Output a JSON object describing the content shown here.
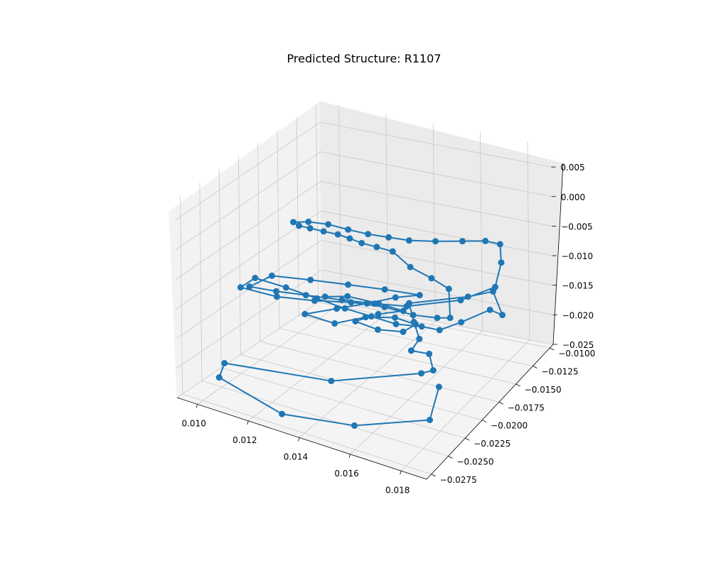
{
  "chart_data": {
    "type": "line",
    "title": "Predicted Structure: R1107",
    "xlabel": "",
    "ylabel": "",
    "zlabel": "",
    "markers": true,
    "color": "#1f77b4",
    "grid": true,
    "x_ticks": [
      "0.010",
      "0.012",
      "0.014",
      "0.016",
      "0.018"
    ],
    "y_ticks": [
      "−0.0100",
      "−0.0125",
      "−0.0150",
      "−0.0175",
      "−0.0200",
      "−0.0225",
      "−0.0250",
      "−0.0275"
    ],
    "z_ticks": [
      "−0.025",
      "−0.020",
      "−0.015",
      "−0.010",
      "−0.005",
      "0.000",
      "0.005"
    ],
    "points": [
      [
        0.0168,
        -0.0184,
        -0.0237
      ],
      [
        0.0171,
        -0.0208,
        -0.0262
      ],
      [
        0.0155,
        -0.0258,
        -0.0235
      ],
      [
        0.0133,
        -0.0281,
        -0.0221
      ],
      [
        0.0109,
        -0.0283,
        -0.0191
      ],
      [
        0.0106,
        -0.0266,
        -0.0187
      ],
      [
        0.0141,
        -0.0241,
        -0.0196
      ],
      [
        0.0164,
        -0.0195,
        -0.0206
      ],
      [
        0.0166,
        -0.0185,
        -0.021
      ],
      [
        0.0165,
        -0.0187,
        -0.0181
      ],
      [
        0.016,
        -0.0195,
        -0.0172
      ],
      [
        0.0159,
        -0.018,
        -0.017
      ],
      [
        0.0153,
        -0.0167,
        -0.0162
      ],
      [
        0.0149,
        -0.016,
        -0.0142
      ],
      [
        0.0161,
        -0.0118,
        -0.0166
      ],
      [
        0.0168,
        -0.0106,
        -0.0165
      ],
      [
        0.0173,
        -0.011,
        -0.0196
      ],
      [
        0.0169,
        -0.0114,
        -0.0186
      ],
      [
        0.0164,
        -0.0138,
        -0.0184
      ],
      [
        0.016,
        -0.0155,
        -0.0182
      ],
      [
        0.0155,
        -0.0163,
        -0.0172
      ],
      [
        0.0148,
        -0.0175,
        -0.0162
      ],
      [
        0.014,
        -0.0182,
        -0.015
      ],
      [
        0.0131,
        -0.0188,
        -0.014
      ],
      [
        0.0122,
        -0.0196,
        -0.0125
      ],
      [
        0.0112,
        -0.0204,
        -0.011
      ],
      [
        0.0102,
        -0.0212,
        -0.0098
      ],
      [
        0.0097,
        -0.0215,
        -0.0117
      ],
      [
        0.0107,
        -0.02,
        -0.0135
      ],
      [
        0.0118,
        -0.0186,
        -0.0143
      ],
      [
        0.0129,
        -0.0173,
        -0.0147
      ],
      [
        0.014,
        -0.0164,
        -0.0153
      ],
      [
        0.015,
        -0.0158,
        -0.0163
      ],
      [
        0.0157,
        -0.0148,
        -0.0172
      ],
      [
        0.016,
        -0.014,
        -0.0178
      ],
      [
        0.0156,
        -0.0128,
        -0.0146
      ],
      [
        0.015,
        -0.0132,
        -0.0129
      ],
      [
        0.0143,
        -0.0138,
        -0.011
      ],
      [
        0.0136,
        -0.0139,
        -0.0089
      ],
      [
        0.013,
        -0.0141,
        -0.0085
      ],
      [
        0.0125,
        -0.0145,
        -0.0079
      ],
      [
        0.0121,
        -0.0148,
        -0.0072
      ],
      [
        0.0117,
        -0.0151,
        -0.0066
      ],
      [
        0.0113,
        -0.0157,
        -0.0059
      ],
      [
        0.0109,
        -0.0162,
        -0.0053
      ],
      [
        0.0106,
        -0.0167,
        -0.0047
      ],
      [
        0.0104,
        -0.0168,
        -0.0042
      ],
      [
        0.0108,
        -0.0161,
        -0.0044
      ],
      [
        0.0114,
        -0.0154,
        -0.0049
      ],
      [
        0.0121,
        -0.015,
        -0.0055
      ],
      [
        0.0128,
        -0.0146,
        -0.006
      ],
      [
        0.0135,
        -0.0141,
        -0.0064
      ],
      [
        0.0142,
        -0.0136,
        -0.0068
      ],
      [
        0.015,
        -0.0126,
        -0.0073
      ],
      [
        0.0158,
        -0.0115,
        -0.0078
      ],
      [
        0.0165,
        -0.0106,
        -0.0082
      ],
      [
        0.017,
        -0.0102,
        -0.0088
      ],
      [
        0.0171,
        -0.0104,
        -0.0116
      ],
      [
        0.0171,
        -0.0113,
        -0.0147
      ],
      [
        0.0163,
        -0.0135,
        -0.0151
      ],
      [
        0.0148,
        -0.016,
        -0.0148
      ],
      [
        0.0138,
        -0.0171,
        -0.0142
      ],
      [
        0.0128,
        -0.0182,
        -0.0135
      ],
      [
        0.0117,
        -0.0194,
        -0.0127
      ],
      [
        0.0108,
        -0.0204,
        -0.0121
      ],
      [
        0.01,
        -0.0213,
        -0.0114
      ],
      [
        0.0106,
        -0.0203,
        -0.0098
      ],
      [
        0.0118,
        -0.0191,
        -0.0103
      ],
      [
        0.013,
        -0.018,
        -0.0109
      ],
      [
        0.0142,
        -0.017,
        -0.0115
      ],
      [
        0.0154,
        -0.0162,
        -0.0121
      ],
      [
        0.0144,
        -0.0162,
        -0.0135
      ],
      [
        0.0134,
        -0.0168,
        -0.0149
      ],
      [
        0.0124,
        -0.0176,
        -0.016
      ],
      [
        0.0114,
        -0.0186,
        -0.017
      ],
      [
        0.0124,
        -0.0179,
        -0.0182
      ],
      [
        0.0134,
        -0.017,
        -0.017
      ],
      [
        0.0144,
        -0.0163,
        -0.0168
      ],
      [
        0.0151,
        -0.0158,
        -0.0178
      ],
      [
        0.0147,
        -0.0162,
        -0.019
      ],
      [
        0.0139,
        -0.017,
        -0.0186
      ],
      [
        0.0131,
        -0.0174,
        -0.0176
      ],
      [
        0.0138,
        -0.0166,
        -0.0165
      ],
      [
        0.0146,
        -0.0158,
        -0.016
      ],
      [
        0.0137,
        -0.0162,
        -0.0152
      ],
      [
        0.0126,
        -0.0168,
        -0.0145
      ],
      [
        0.0118,
        -0.0172,
        -0.015
      ]
    ]
  }
}
